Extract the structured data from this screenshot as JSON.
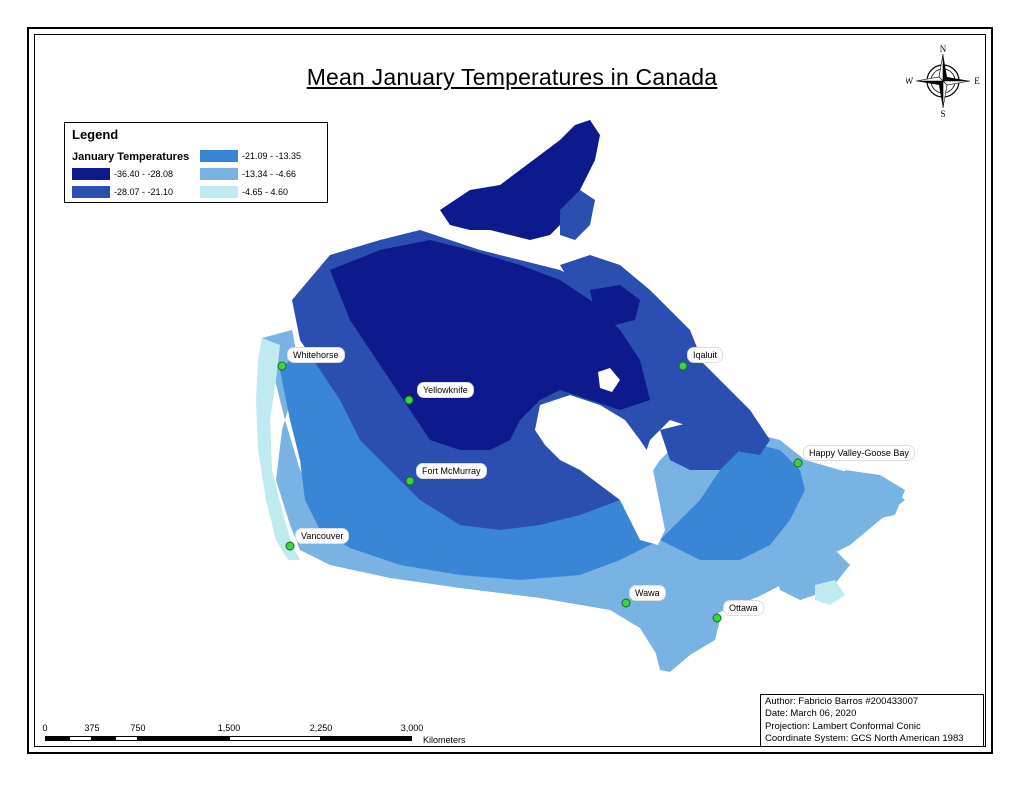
{
  "title": "Mean January Temperatures in Canada",
  "legend": {
    "title": "Legend",
    "subtitle": "January Temperatures",
    "classes": [
      {
        "label": "-36.40 - -28.08",
        "color": "#0d1a8c"
      },
      {
        "label": "-28.07 - -21.10",
        "color": "#2a4fb0"
      },
      {
        "label": "-21.09 - -13.35",
        "color": "#3a86d6"
      },
      {
        "label": "-13.34 - -4.66",
        "color": "#79b3e4"
      },
      {
        "label": "-4.65 - 4.60",
        "color": "#bfeaf0"
      }
    ]
  },
  "cities": [
    {
      "name": "Whitehorse"
    },
    {
      "name": "Yellowknife"
    },
    {
      "name": "Fort McMurray"
    },
    {
      "name": "Vancouver"
    },
    {
      "name": "Iqaluit"
    },
    {
      "name": "Happy Valley-Goose Bay"
    },
    {
      "name": "Wawa"
    },
    {
      "name": "Ottawa"
    }
  ],
  "compass": {
    "n": "N",
    "s": "S",
    "e": "E",
    "w": "W"
  },
  "info": {
    "author": "Author: Fabricio Barros #200433007",
    "date": "Date: March 06, 2020",
    "projection": "Projection: Lambert Conformal Conic",
    "coords": "Coordinate System: GCS North American 1983"
  },
  "scale": {
    "ticks": [
      "0",
      "375",
      "750",
      "1,500",
      "2,250",
      "3,000"
    ],
    "unit": "Kilometers"
  }
}
